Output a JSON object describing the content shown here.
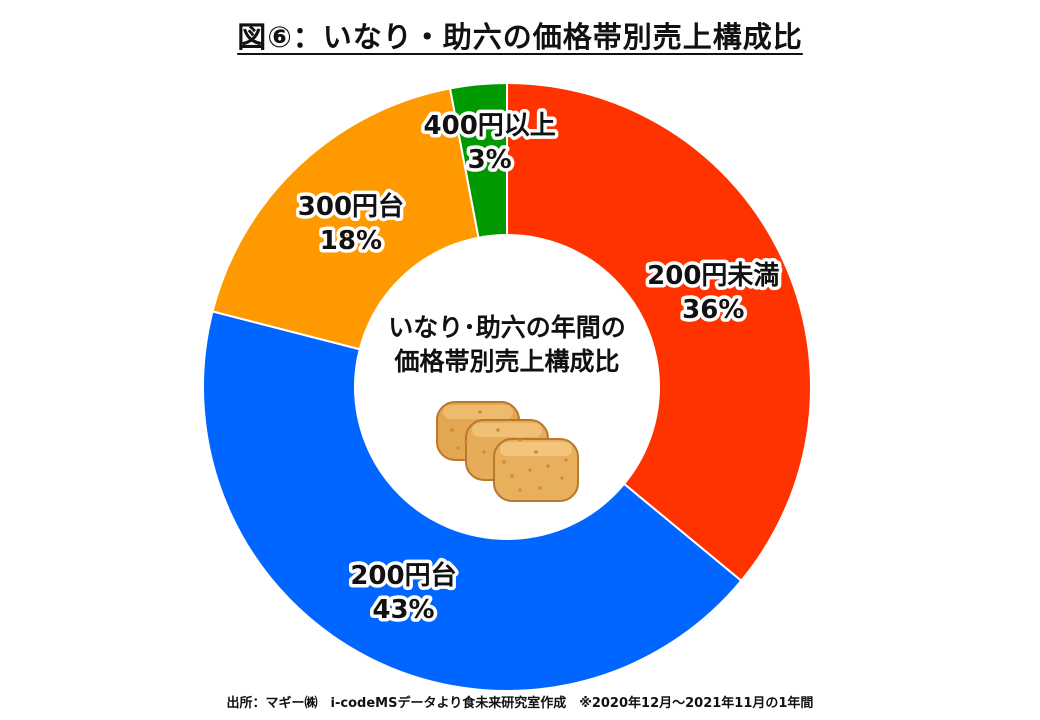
{
  "chart_data": {
    "type": "pie",
    "title": "図⑥：いなり・助六の価格帯別売上構成比",
    "center_label": [
      "いなり･助六の年間の",
      "価格帯別売上構成比"
    ],
    "center_image_icon": "inari-sushi-icon",
    "categories": [
      "200円未満",
      "200円台",
      "300円台",
      "400円以上"
    ],
    "values": [
      36,
      43,
      18,
      3
    ],
    "value_labels": [
      "36%",
      "43%",
      "18%",
      "3%"
    ],
    "colors": [
      "#FF3300",
      "#0066FF",
      "#FF9900",
      "#009900"
    ],
    "donut": true,
    "start": "12 o'clock",
    "direction": "clockwise",
    "legend": "none",
    "source": "出所：マギー㈱　i-codeMSデータより食未来研究室作成　※2020年12月～2021年11月の1年間"
  }
}
